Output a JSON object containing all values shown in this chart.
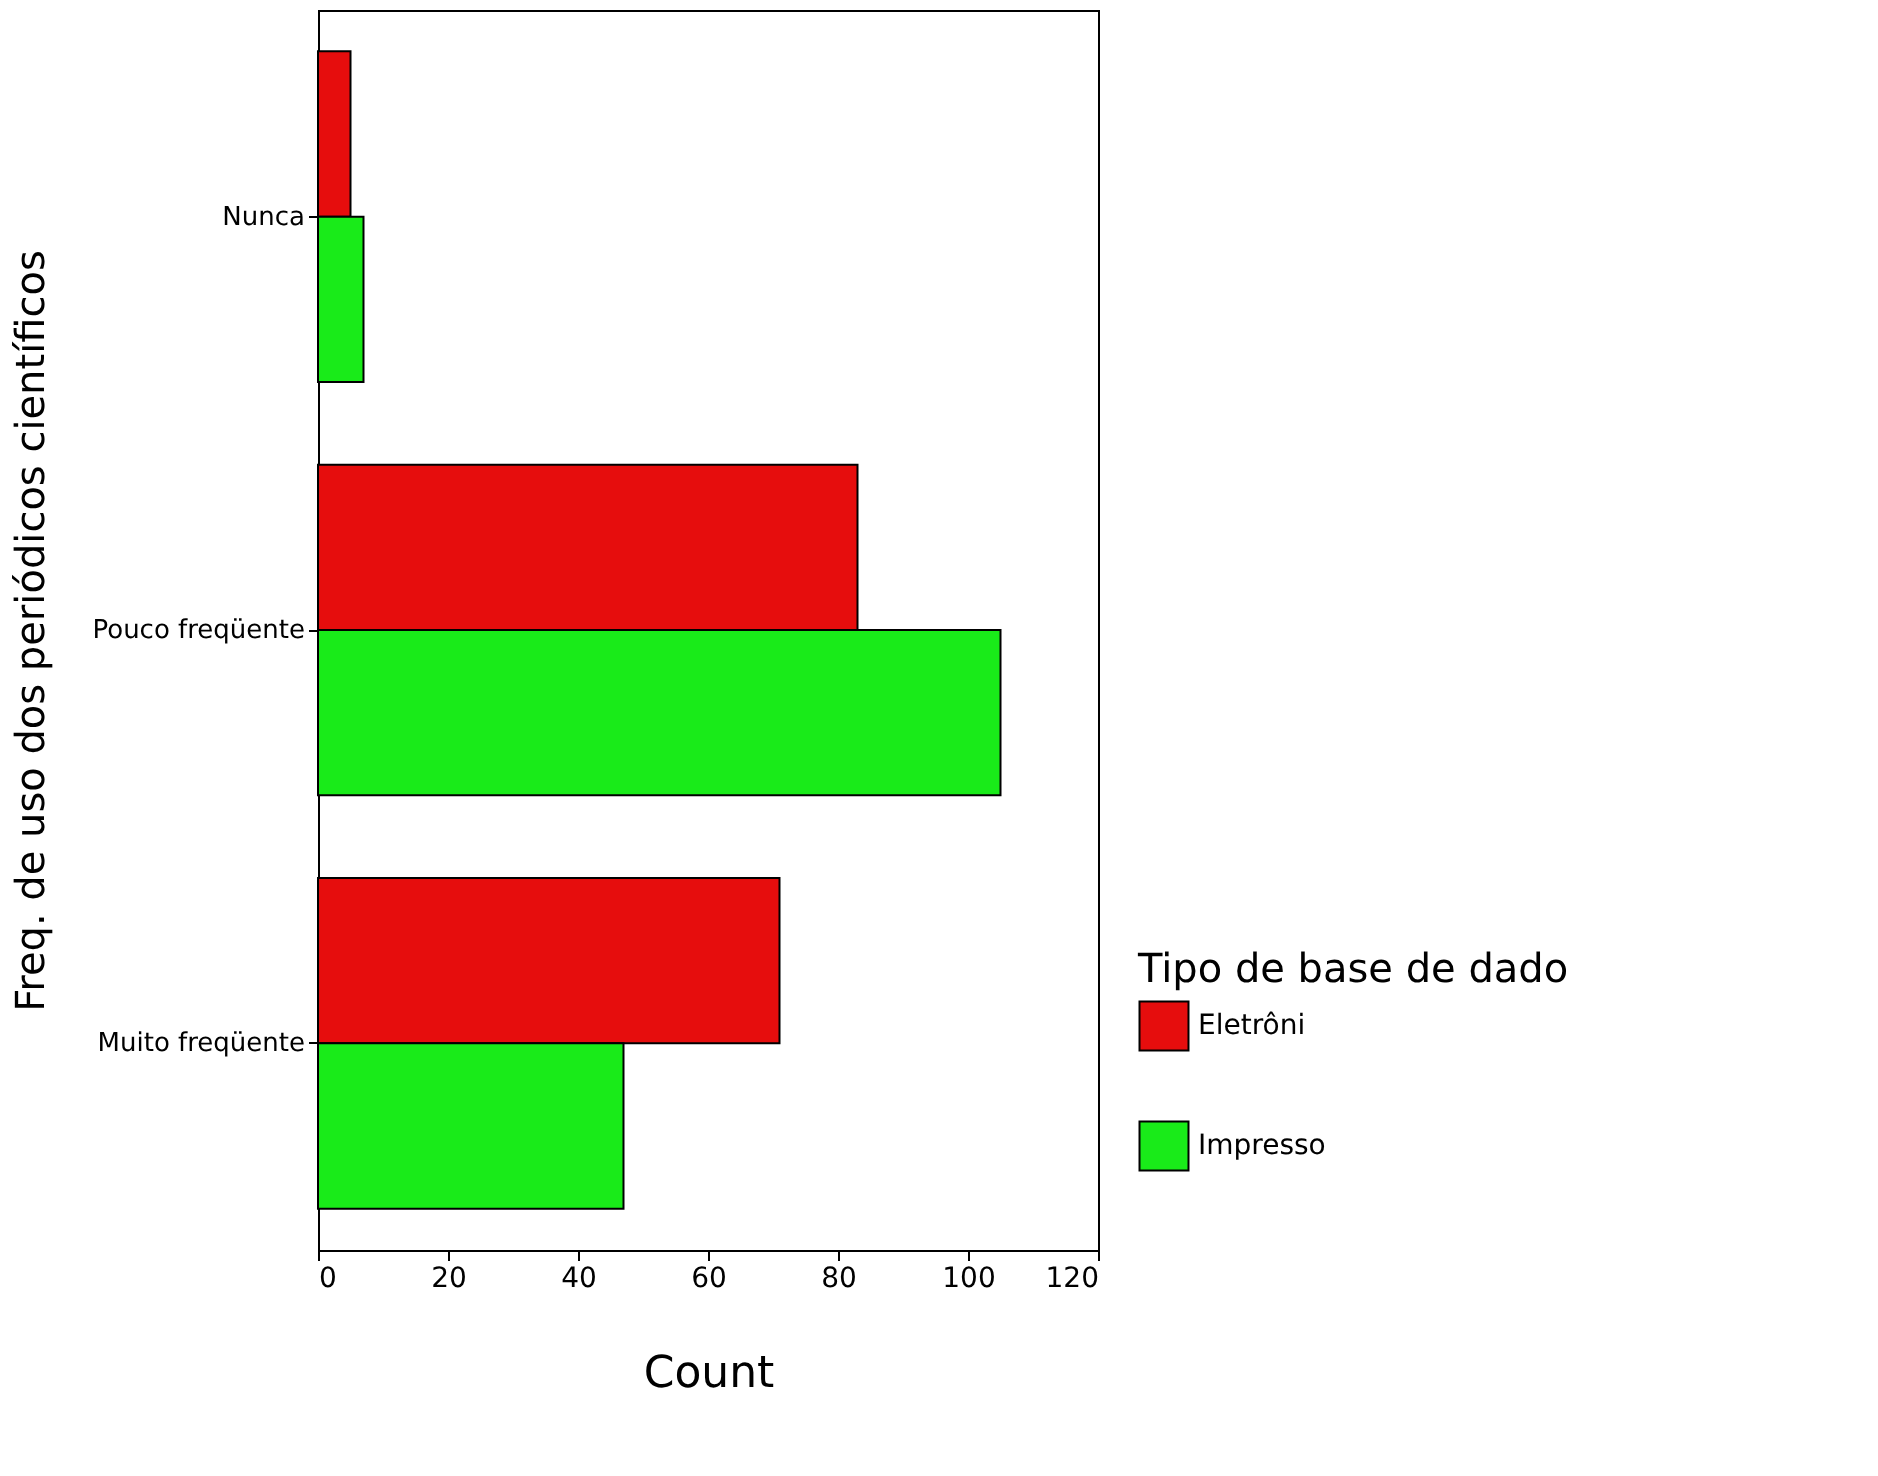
{
  "chart_data": {
    "type": "bar",
    "orientation": "horizontal",
    "xlabel": "Count",
    "ylabel": "Freq. de uso dos periódicos científicos",
    "legend_title": "Tipo de base de dado",
    "legend": "right",
    "grid": false,
    "categories": [
      "Nunca",
      "Pouco freqüente",
      "Muito freqüente"
    ],
    "series": [
      {
        "name": "Eletrôni",
        "color": "#e60d0d",
        "values": [
          5,
          83,
          71
        ]
      },
      {
        "name": "Impresso",
        "color": "#19eb19",
        "values": [
          7,
          105,
          47
        ]
      }
    ],
    "xlim": [
      0,
      120
    ],
    "xticks": [
      0,
      20,
      40,
      60,
      80,
      100,
      120
    ]
  }
}
